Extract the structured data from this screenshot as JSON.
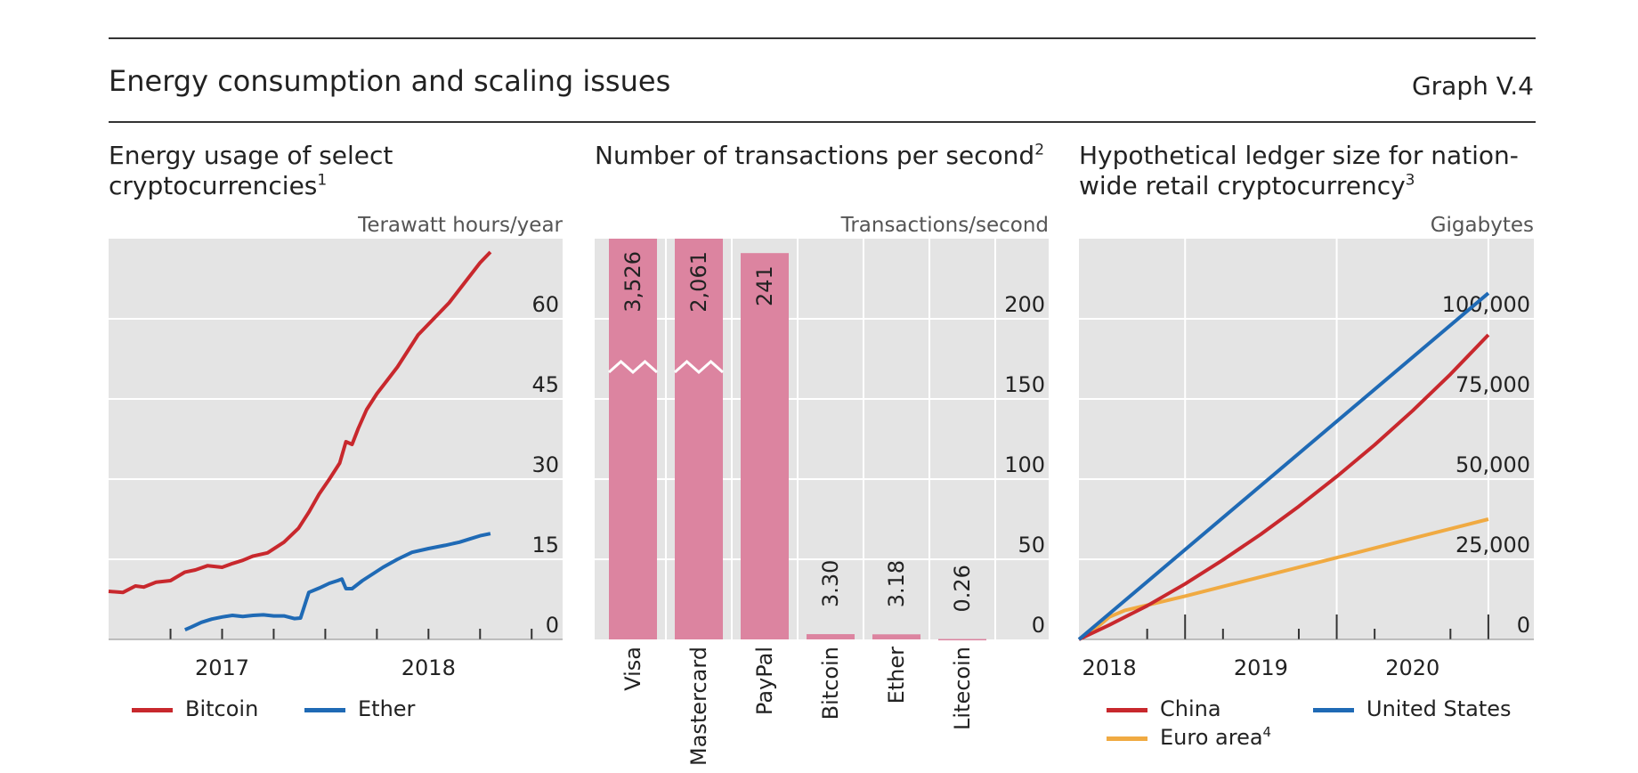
{
  "header": {
    "title": "Energy consumption and scaling issues",
    "graph_id": "Graph V.4"
  },
  "colors": {
    "bitcoin": "#c8282d",
    "ether": "#1f6ab5",
    "bar": "#dc84a0",
    "china": "#c8282d",
    "euro_area": "#f0aa42",
    "united_states": "#1f6ab5",
    "plot_bg": "#e4e4e4",
    "grid": "#ffffff"
  },
  "chart_data": [
    {
      "type": "line",
      "title": "Energy usage of select cryptocurrencies",
      "title_footnote": "1",
      "ylabel": "Terawatt hours/year",
      "ylim": [
        0,
        75
      ],
      "yticks": [
        0,
        15,
        30,
        45,
        60
      ],
      "ytick_labels": [
        "0",
        "15",
        "30",
        "45",
        "60"
      ],
      "xlim": [
        2016.45,
        2018.65
      ],
      "x_tick_labels": [
        {
          "label": "2017",
          "x": 2017.0
        },
        {
          "label": "2018",
          "x": 2018.0
        }
      ],
      "x_minor_ticks": [
        2016.75,
        2017.0,
        2017.25,
        2017.5,
        2017.75,
        2018.0,
        2018.25,
        2018.5
      ],
      "legend_position": "bottom",
      "series": [
        {
          "name": "Bitcoin",
          "x": [
            2016.45,
            2016.52,
            2016.58,
            2016.62,
            2016.68,
            2016.75,
            2016.82,
            2016.87,
            2016.93,
            2017.0,
            2017.05,
            2017.1,
            2017.15,
            2017.22,
            2017.3,
            2017.37,
            2017.42,
            2017.47,
            2017.52,
            2017.57,
            2017.6,
            2017.63,
            2017.66,
            2017.7,
            2017.75,
            2017.8,
            2017.85,
            2017.9,
            2017.95,
            2018.0,
            2018.05,
            2018.1,
            2018.15,
            2018.2,
            2018.25,
            2018.3
          ],
          "values": [
            9,
            8.8,
            10,
            9.8,
            10.7,
            11,
            12.6,
            13,
            13.8,
            13.5,
            14.2,
            14.8,
            15.6,
            16.2,
            18.2,
            20.8,
            23.8,
            27.2,
            30,
            33,
            37,
            36.5,
            39.5,
            43,
            46,
            48.5,
            51,
            54,
            57,
            59,
            61,
            63,
            65.5,
            68,
            70.5,
            72.5
          ]
        },
        {
          "name": "Ether",
          "x": [
            2016.82,
            2016.85,
            2016.9,
            2016.95,
            2017.0,
            2017.05,
            2017.1,
            2017.15,
            2017.2,
            2017.25,
            2017.3,
            2017.35,
            2017.38,
            2017.42,
            2017.47,
            2017.52,
            2017.56,
            2017.58,
            2017.6,
            2017.63,
            2017.68,
            2017.72,
            2017.78,
            2017.85,
            2017.92,
            2018.0,
            2018.08,
            2018.15,
            2018.2,
            2018.25,
            2018.3
          ],
          "values": [
            1.8,
            2.3,
            3.2,
            3.8,
            4.2,
            4.5,
            4.3,
            4.5,
            4.6,
            4.4,
            4.4,
            3.9,
            4.0,
            8.8,
            9.6,
            10.5,
            11.0,
            11.3,
            9.5,
            9.5,
            11,
            12,
            13.5,
            15,
            16.3,
            17,
            17.6,
            18.2,
            18.8,
            19.4,
            19.8
          ]
        }
      ]
    },
    {
      "type": "bar",
      "title": "Number of transactions per second",
      "title_footnote": "2",
      "ylabel": "Transactions/second",
      "ylim": [
        0,
        250
      ],
      "yticks": [
        0,
        50,
        100,
        150,
        200
      ],
      "ytick_labels": [
        "0",
        "50",
        "100",
        "150",
        "200"
      ],
      "categories": [
        "Visa",
        "Mastercard",
        "PayPal",
        "Bitcoin",
        "Ether",
        "Litecoin"
      ],
      "values": [
        3526,
        2061,
        241,
        3.3,
        3.18,
        0.26
      ],
      "data_labels": [
        "3,526",
        "2,061",
        "241",
        "3.30",
        "3.18",
        "0.26"
      ],
      "axis_break": {
        "categories": [
          "Visa",
          "Mastercard"
        ],
        "at": 170
      }
    },
    {
      "type": "line",
      "title": "Hypothetical ledger size for nation-wide retail cryptocurrency",
      "title_footnote": "3",
      "ylabel": "Gigabytes",
      "ylim": [
        0,
        125000
      ],
      "yticks": [
        0,
        25000,
        50000,
        75000,
        100000
      ],
      "ytick_labels": [
        "0",
        "25,000",
        "50,000",
        "75,000",
        "100,000"
      ],
      "xlim": [
        2017.8,
        2020.8
      ],
      "x_tick_labels": [
        {
          "label": "2018",
          "x": 2018.0
        },
        {
          "label": "2019",
          "x": 2019.0
        },
        {
          "label": "2020",
          "x": 2020.0
        }
      ],
      "x_major_ticks": [
        2018.5,
        2019.5,
        2020.5
      ],
      "x_minor_ticks": [
        2018.25,
        2018.75,
        2019.25,
        2019.75,
        2020.25
      ],
      "legend_position": "bottom",
      "series": [
        {
          "name": "China",
          "x": [
            2017.8,
            2018.0,
            2018.25,
            2018.5,
            2018.75,
            2019.0,
            2019.25,
            2019.5,
            2019.75,
            2020.0,
            2020.25,
            2020.5
          ],
          "values": [
            0,
            4500,
            10500,
            17300,
            24800,
            32800,
            41500,
            50800,
            60700,
            71300,
            82700,
            95000
          ]
        },
        {
          "name": "Euro area",
          "name_footnote": "4",
          "x": [
            2017.8,
            2017.9,
            2018.0,
            2018.1,
            2018.5,
            2019.0,
            2019.5,
            2020.0,
            2020.5
          ],
          "values": [
            0,
            3000,
            7000,
            9000,
            13500,
            19500,
            25500,
            31500,
            37500
          ]
        },
        {
          "name": "United States",
          "x": [
            2017.8,
            2020.5
          ],
          "values": [
            0,
            108000
          ]
        }
      ]
    }
  ]
}
